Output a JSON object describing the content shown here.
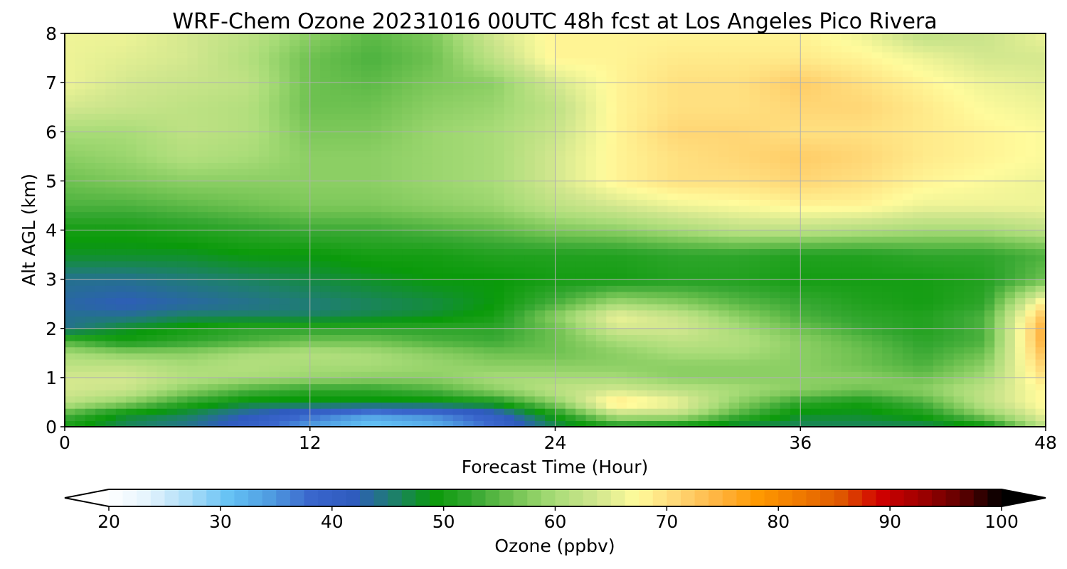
{
  "chart_data": {
    "type": "heatmap",
    "title": "WRF-Chem Ozone  20231016 00UTC 48h fcst at Los Angeles Pico Rivera",
    "xlabel": "Forecast Time (Hour)",
    "ylabel": "Alt AGL (km)",
    "xlim": [
      0,
      48
    ],
    "ylim": [
      0,
      8
    ],
    "x_ticks": [
      "0",
      "12",
      "24",
      "36",
      "48"
    ],
    "y_ticks": [
      "0",
      "1",
      "2",
      "3",
      "4",
      "5",
      "6",
      "7",
      "8"
    ],
    "grid": true,
    "colorbar": {
      "label": "Ozone  (ppbv)",
      "range": [
        20,
        100
      ],
      "ticks": [
        "20",
        "30",
        "40",
        "50",
        "60",
        "70",
        "80",
        "90",
        "100"
      ],
      "extend": "both",
      "colors": [
        "#ffffff",
        "#e3f3fd",
        "#a9dcf8",
        "#63c1f4",
        "#4f9be0",
        "#3a66cc",
        "#2f5bbf",
        "#1e7f6e",
        "#0a9a0a",
        "#37a832",
        "#74c454",
        "#a9dc78",
        "#cfe68d",
        "#fffb9c",
        "#ffd776",
        "#ffb441",
        "#ff9900",
        "#f07a00",
        "#e05a00",
        "#d10000",
        "#a00000",
        "#600000",
        "#000000"
      ]
    },
    "times_hour": [
      0,
      3,
      6,
      9,
      12,
      15,
      18,
      21,
      24,
      27,
      30,
      33,
      36,
      39,
      42,
      45,
      48
    ],
    "altitudes_km": [
      0,
      0.25,
      0.5,
      0.75,
      1,
      1.25,
      1.5,
      1.75,
      2,
      2.25,
      2.5,
      3,
      3.5,
      4,
      4.5,
      5,
      5.5,
      6,
      6.5,
      7,
      7.5,
      8
    ],
    "ozone_ppbv": [
      [
        50,
        46,
        44,
        40,
        34,
        30,
        32,
        38,
        46,
        50,
        48,
        46,
        46,
        46,
        46,
        48,
        62
      ],
      [
        54,
        48,
        46,
        42,
        38,
        34,
        36,
        40,
        50,
        62,
        62,
        54,
        48,
        48,
        50,
        58,
        66
      ],
      [
        62,
        58,
        52,
        48,
        48,
        48,
        48,
        50,
        58,
        70,
        66,
        58,
        52,
        50,
        54,
        62,
        68
      ],
      [
        64,
        63,
        58,
        54,
        52,
        52,
        54,
        58,
        62,
        64,
        62,
        60,
        58,
        56,
        58,
        62,
        68
      ],
      [
        64,
        64,
        61,
        60,
        59,
        58,
        58,
        60,
        60,
        60,
        58,
        58,
        58,
        58,
        56,
        60,
        70
      ],
      [
        62,
        62,
        60,
        61,
        60,
        60,
        59,
        58,
        58,
        58,
        58,
        58,
        58,
        56,
        54,
        58,
        72
      ],
      [
        60,
        58,
        58,
        60,
        61,
        60,
        58,
        56,
        56,
        58,
        60,
        60,
        58,
        56,
        53,
        56,
        74
      ],
      [
        54,
        50,
        52,
        54,
        56,
        56,
        54,
        53,
        56,
        60,
        62,
        61,
        58,
        55,
        52,
        54,
        76
      ],
      [
        44,
        48,
        50,
        52,
        52,
        52,
        52,
        52,
        56,
        64,
        64,
        60,
        56,
        53,
        51,
        54,
        76
      ],
      [
        44,
        44,
        46,
        46,
        46,
        47,
        48,
        50,
        58,
        66,
        63,
        58,
        54,
        52,
        51,
        54,
        74
      ],
      [
        43,
        42,
        43,
        44,
        45,
        46,
        47,
        49,
        54,
        60,
        58,
        55,
        53,
        51,
        50,
        52,
        70
      ],
      [
        44,
        44,
        45,
        46,
        47,
        48,
        49,
        49,
        50,
        50,
        51,
        51,
        50,
        50,
        50,
        51,
        56
      ],
      [
        48,
        48,
        48,
        49,
        49,
        50,
        50,
        51,
        51,
        51,
        52,
        52,
        51,
        51,
        52,
        52,
        54
      ],
      [
        50,
        50,
        51,
        52,
        53,
        53,
        54,
        55,
        57,
        58,
        60,
        62,
        62,
        61,
        60,
        60,
        62
      ],
      [
        54,
        54,
        55,
        56,
        57,
        57,
        58,
        59,
        62,
        64,
        66,
        67,
        68,
        68,
        66,
        66,
        66
      ],
      [
        56,
        57,
        58,
        58,
        58,
        58,
        59,
        60,
        64,
        68,
        70,
        70,
        71,
        70,
        68,
        67,
        66
      ],
      [
        58,
        59,
        61,
        60,
        58,
        58,
        59,
        60,
        64,
        68,
        70,
        71,
        72,
        71,
        69,
        68,
        67
      ],
      [
        60,
        60,
        62,
        61,
        57,
        57,
        59,
        60,
        63,
        68,
        71,
        71,
        70,
        70,
        69,
        68,
        67
      ],
      [
        64,
        63,
        62,
        61,
        56,
        56,
        58,
        59,
        62,
        68,
        70,
        70,
        71,
        71,
        69,
        67,
        66
      ],
      [
        66,
        64,
        63,
        62,
        56,
        55,
        57,
        58,
        64,
        68,
        70,
        70,
        72,
        70,
        68,
        66,
        65
      ],
      [
        66,
        65,
        64,
        61,
        56,
        54,
        56,
        62,
        68,
        68,
        69,
        69,
        69,
        68,
        66,
        64,
        64
      ],
      [
        66,
        66,
        64,
        62,
        58,
        55,
        57,
        64,
        68,
        68,
        68,
        68,
        68,
        66,
        62,
        63,
        66
      ]
    ]
  }
}
